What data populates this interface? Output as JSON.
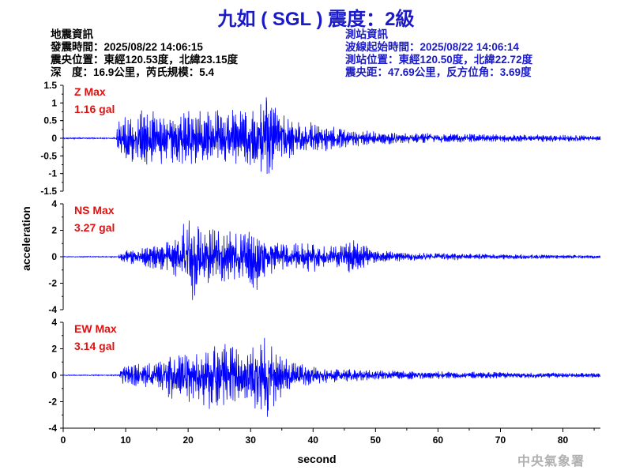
{
  "header": {
    "title": "九如 ( SGL ) 震度：2級"
  },
  "quake_info": {
    "heading": "地震資訊",
    "origin_time": "發震時間：2025/08/22 14:06:15",
    "epicenter": "震央位置：東經120.53度，北緯23.15度",
    "depth_magnitude": "深　度：16.9公里，芮氏規模：5.4"
  },
  "station_info": {
    "heading": "測站資訊",
    "wave_start": "波線起始時間：2025/08/22 14:06:14",
    "location": "測站位置：東經120.50度，北緯22.72度",
    "distance": "震央距：47.69公里，反方位角：3.69度"
  },
  "footer": {
    "agency": "中央氣象署"
  },
  "colors": {
    "title": "#1a1ac8",
    "station_info": "#1a1ac8",
    "trace": "#0000ff",
    "peak_label": "#e01010",
    "footer": "#b0b0b0"
  },
  "chart_data": {
    "type": "line",
    "xlabel": "second",
    "ylabel": "acceleration",
    "xlim": [
      0,
      86
    ],
    "xticks": [
      0,
      10,
      20,
      30,
      40,
      50,
      60,
      70,
      80
    ],
    "grid": false,
    "panels": [
      {
        "name": "Z",
        "peak_label": "Z Max",
        "peak_value": "1.16 gal",
        "ylim": [
          -1.5,
          1.5
        ],
        "yticks": [
          -1.5,
          -1,
          -0.5,
          0,
          0.5,
          1,
          1.5
        ],
        "ytick_labels": [
          "-1.5",
          "-1",
          "-0.5",
          "0",
          "0.5",
          "1",
          "1.5"
        ],
        "p_arrival": 8.5,
        "envelope": [
          [
            0,
            0.02
          ],
          [
            8.4,
            0.02
          ],
          [
            8.8,
            0.5
          ],
          [
            10,
            0.75
          ],
          [
            13,
            0.82
          ],
          [
            17,
            0.82
          ],
          [
            22,
            0.78
          ],
          [
            26,
            0.82
          ],
          [
            30,
            0.82
          ],
          [
            32.5,
            1.16
          ],
          [
            35,
            0.68
          ],
          [
            40,
            0.45
          ],
          [
            45,
            0.28
          ],
          [
            50,
            0.2
          ],
          [
            55,
            0.17
          ],
          [
            60,
            0.14
          ],
          [
            70,
            0.12
          ],
          [
            80,
            0.1
          ],
          [
            86,
            0.08
          ]
        ],
        "peak": {
          "t": 32.5,
          "value": 1.16
        }
      },
      {
        "name": "NS",
        "peak_label": "NS Max",
        "peak_value": "3.27 gal",
        "ylim": [
          -4,
          4
        ],
        "yticks": [
          -4,
          -2,
          0,
          2,
          4
        ],
        "ytick_labels": [
          "-4",
          "-2",
          "0",
          "2",
          "4"
        ],
        "p_arrival": 8.8,
        "envelope": [
          [
            0,
            0.03
          ],
          [
            8.8,
            0.05
          ],
          [
            9.5,
            0.6
          ],
          [
            12,
            0.7
          ],
          [
            16,
            1.2
          ],
          [
            19,
            2.4
          ],
          [
            20.7,
            3.27
          ],
          [
            23,
            2.2
          ],
          [
            25,
            2.5
          ],
          [
            27,
            1.9
          ],
          [
            29,
            2.0
          ],
          [
            31,
            3.0
          ],
          [
            33,
            1.4
          ],
          [
            36,
            1.0
          ],
          [
            40,
            1.2
          ],
          [
            43,
            0.9
          ],
          [
            46,
            1.4
          ],
          [
            50,
            0.5
          ],
          [
            55,
            0.35
          ],
          [
            60,
            0.3
          ],
          [
            70,
            0.22
          ],
          [
            80,
            0.15
          ],
          [
            86,
            0.12
          ]
        ],
        "peak": {
          "t": 20.7,
          "value": -3.27
        }
      },
      {
        "name": "EW",
        "peak_label": "EW Max",
        "peak_value": "3.14 gal",
        "ylim": [
          -4,
          4
        ],
        "yticks": [
          -4,
          -2,
          0,
          2,
          4
        ],
        "ytick_labels": [
          "-4",
          "-2",
          "0",
          "2",
          "4"
        ],
        "p_arrival": 9.0,
        "envelope": [
          [
            0,
            0.03
          ],
          [
            9,
            0.05
          ],
          [
            9.5,
            0.8
          ],
          [
            12,
            0.9
          ],
          [
            15,
            1.1
          ],
          [
            17,
            1.8
          ],
          [
            19,
            2.2
          ],
          [
            21,
            2.0
          ],
          [
            23,
            2.6
          ],
          [
            25,
            2.8
          ],
          [
            27,
            2.4
          ],
          [
            29,
            2.2
          ],
          [
            32.7,
            3.14
          ],
          [
            35,
            1.6
          ],
          [
            37,
            1.0
          ],
          [
            40,
            0.7
          ],
          [
            45,
            0.5
          ],
          [
            50,
            0.4
          ],
          [
            55,
            0.35
          ],
          [
            60,
            0.3
          ],
          [
            70,
            0.25
          ],
          [
            80,
            0.2
          ],
          [
            86,
            0.18
          ]
        ],
        "peak": {
          "t": 32.7,
          "value": -3.14
        }
      }
    ]
  }
}
